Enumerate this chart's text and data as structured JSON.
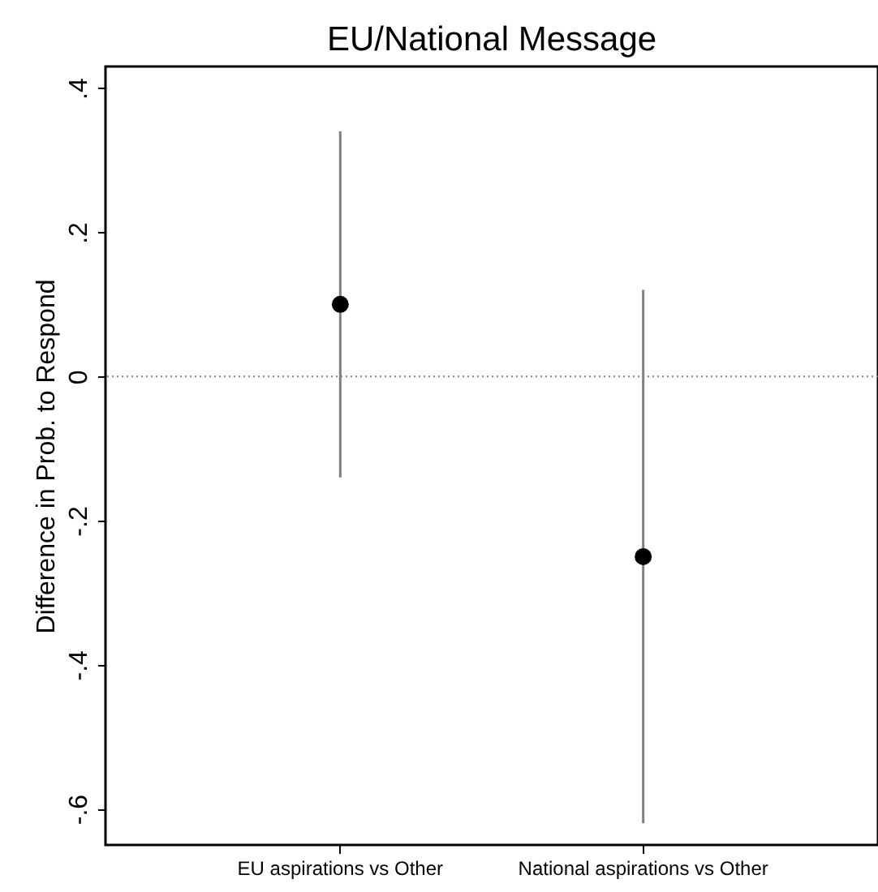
{
  "chart_data": {
    "type": "scatter",
    "title": "EU/National Message",
    "ylabel": "Difference in Prob. to Respond",
    "categories": [
      "EU aspirations vs Other",
      "National aspirations vs Other"
    ],
    "series": [
      {
        "color": "#000000",
        "values": [
          0.1,
          -0.25
        ],
        "errors": [
          [
            -0.14,
            0.34
          ],
          [
            -0.62,
            0.12
          ]
        ]
      }
    ],
    "ylim": [
      -0.65,
      0.43
    ],
    "yticks": [
      {
        "value": -0.6,
        "label": "-.6"
      },
      {
        "value": -0.4,
        "label": "-.4"
      },
      {
        "value": -0.2,
        "label": "-.2"
      },
      0,
      {
        "value": 0.2,
        "label": ".2"
      },
      {
        "value": 0.4,
        "label": ".4"
      }
    ],
    "ref_lines": [
      {
        "axis": "y",
        "value": 0,
        "color": "#808080",
        "line_style": "dotted"
      }
    ],
    "grid": false,
    "marker": "circle"
  }
}
